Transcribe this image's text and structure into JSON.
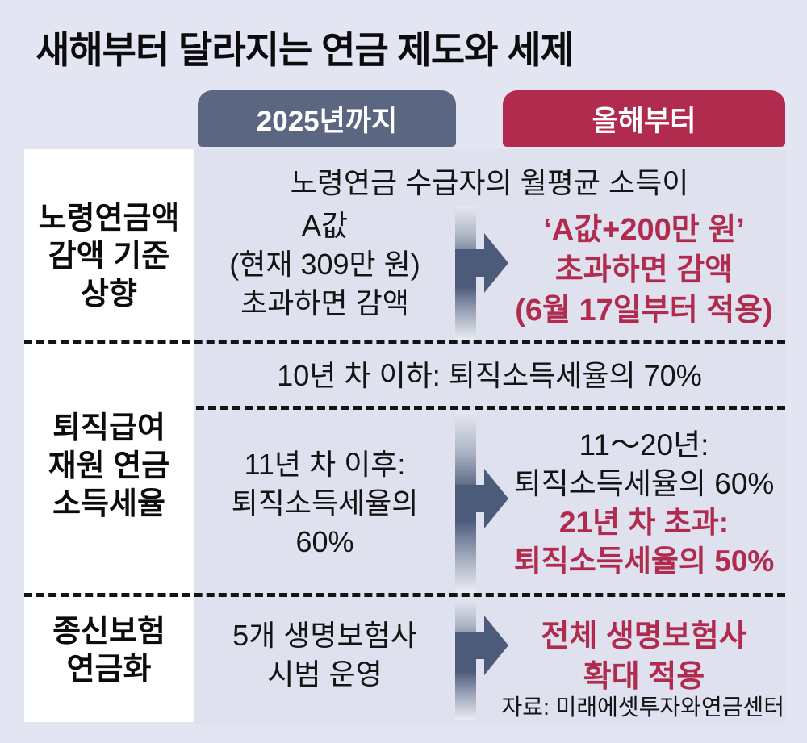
{
  "title": "새해부터 달라지는 연금 제도와 세제",
  "columns": {
    "before": "2025년까지",
    "after": "올해부터"
  },
  "rows": [
    {
      "label_lines": [
        "노령연금액",
        "감액 기준",
        "상향"
      ],
      "span": "노령연금 수급자의 월평균 소득이",
      "before_lines": [
        "A값",
        "(현재 309만 원)",
        "초과하면 감액"
      ],
      "after_lines": [
        "‘A값+200만 원’",
        "초과하면 감액",
        "(6월 17일부터 적용)"
      ]
    },
    {
      "label_lines": [
        "퇴직급여",
        "재원 연금",
        "소득세율"
      ],
      "span": "10년 차 이하: 퇴직소득세율의 70%",
      "before_lines": [
        "11년 차 이후:",
        "퇴직소득세율의",
        "60%"
      ],
      "after_black_lines": [
        "11～20년:",
        "퇴직소득세율의 60%"
      ],
      "after_red_lines": [
        "21년 차 초과:",
        "퇴직소득세율의 50%"
      ]
    },
    {
      "label_lines": [
        "종신보험",
        "연금화"
      ],
      "before_lines": [
        "5개 생명보험사",
        "시범 운영"
      ],
      "after_lines": [
        "전체 생명보험사",
        "확대 적용"
      ]
    }
  ],
  "source": "자료: 미래에셋투자와연금센터",
  "icons": {
    "arrow": "arrow-right-icon"
  },
  "colors": {
    "page_background": "#e4e5f2",
    "table_background": "#dfe1ee",
    "label_column": "#ffffff",
    "header_before": "#5b6780",
    "header_after": "#b12b4e",
    "accent_red": "#b12b4e",
    "arrow_slate": "#4d5b7b",
    "text_black": "#141414"
  }
}
